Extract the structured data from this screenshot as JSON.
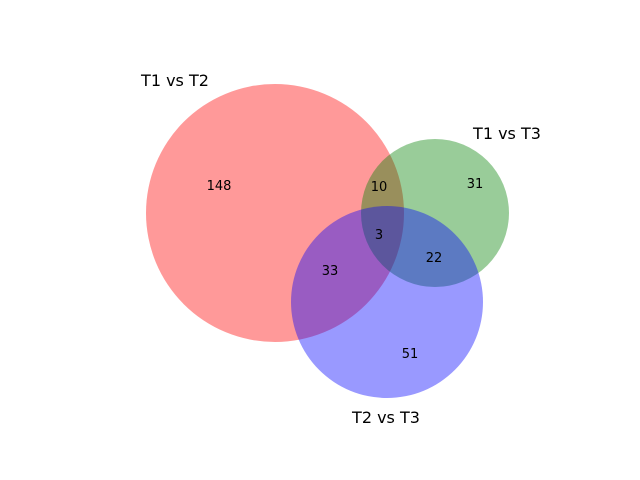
{
  "diagram": {
    "type": "venn3",
    "sets": [
      {
        "name": "T1 vs T2",
        "color": "#ff0000"
      },
      {
        "name": "T1 vs T3",
        "color": "#008000"
      },
      {
        "name": "T2 vs T3",
        "color": "#0000ff"
      }
    ],
    "regions": {
      "only_T1vsT2": "148",
      "only_T1vsT3": "31",
      "only_T2vsT3": "51",
      "T1vsT2_and_T1vsT3": "10",
      "T1vsT2_and_T2vsT3": "33",
      "T1vsT3_and_T2vsT3": "22",
      "all_three": "3"
    },
    "fill_opacity": 0.4
  }
}
